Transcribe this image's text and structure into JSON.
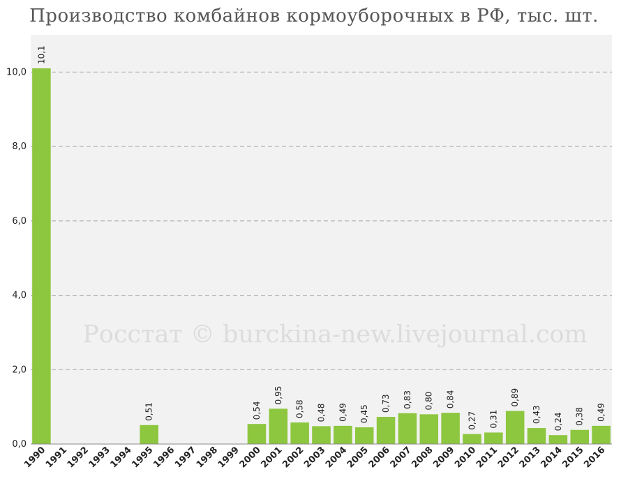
{
  "chart_data": {
    "type": "bar",
    "title": "Производство комбайнов кормоуборочных в РФ, тыс. шт.",
    "watermark": "Росстат © burckina-new.livejournal.com",
    "categories": [
      "1990",
      "1991",
      "1992",
      "1993",
      "1994",
      "1995",
      "1996",
      "1997",
      "1998",
      "1999",
      "2000",
      "2001",
      "2002",
      "2003",
      "2004",
      "2005",
      "2006",
      "2007",
      "2008",
      "2009",
      "2010",
      "2011",
      "2012",
      "2013",
      "2014",
      "2015",
      "2016"
    ],
    "values": [
      10.1,
      null,
      null,
      null,
      null,
      0.51,
      null,
      null,
      null,
      null,
      0.54,
      0.95,
      0.58,
      0.48,
      0.49,
      0.45,
      0.73,
      0.83,
      0.8,
      0.84,
      0.27,
      0.31,
      0.89,
      0.43,
      0.24,
      0.38,
      0.49
    ],
    "data_labels": [
      "10,1",
      "",
      "",
      "",
      "",
      "0,51",
      "",
      "",
      "",
      "",
      "0,54",
      "0,95",
      "0,58",
      "0,48",
      "0,49",
      "0,45",
      "0,73",
      "0,83",
      "0,80",
      "0,84",
      "0,27",
      "0,31",
      "0,89",
      "0,43",
      "0,24",
      "0,38",
      "0,49"
    ],
    "yticks": [
      "0,0",
      "2,0",
      "4,0",
      "6,0",
      "8,0",
      "10,0"
    ],
    "ytick_values": [
      0,
      2,
      4,
      6,
      8,
      10
    ],
    "ylim": [
      0,
      11
    ],
    "xlabel": "",
    "ylabel": "",
    "grid": true,
    "legend": "none",
    "colors": {
      "bar": "#8dc63f",
      "plot_background": "#f2f2f2",
      "grid": "#a6a6a6",
      "axis": "#888888",
      "title": "#555555",
      "watermark": "#dcdcdc"
    }
  }
}
